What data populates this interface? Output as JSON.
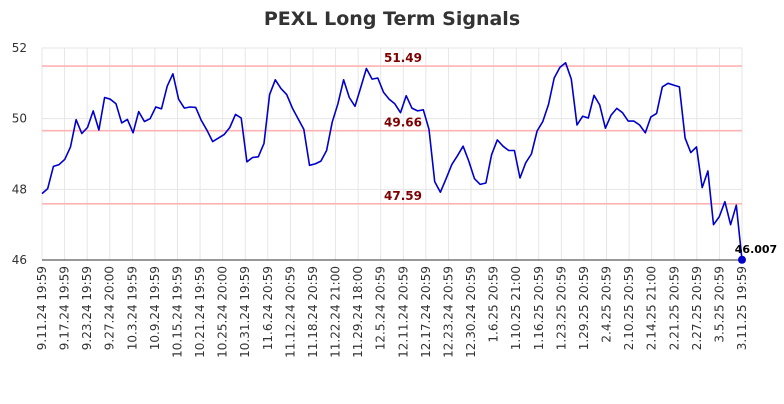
{
  "chart_data": {
    "type": "line",
    "title": "PEXL Long Term Signals",
    "xlabel": "",
    "ylabel": "",
    "ylim": [
      46,
      52
    ],
    "yticks": [
      "46",
      "48",
      "50",
      "52"
    ],
    "x_tick_labels": [
      "9.11.24 19:59",
      "9.17.24 19:59",
      "9.23.24 19:59",
      "9.27.24 20:00",
      "10.3.24 19:59",
      "10.9.24 19:59",
      "10.15.24 19:59",
      "10.21.24 19:59",
      "10.25.24 20:00",
      "10.31.24 19:59",
      "11.6.24 20:59",
      "11.12.24 20:59",
      "11.18.24 20:59",
      "11.22.24 21:00",
      "11.29.24 18:00",
      "12.5.24 20:59",
      "12.11.24 20:59",
      "12.17.24 20:59",
      "12.23.24 20:59",
      "12.30.24 20:59",
      "1.6.25 20:59",
      "1.10.25 21:00",
      "1.16.25 20:59",
      "1.23.25 20:59",
      "1.29.25 20:59",
      "2.4.25 20:59",
      "2.10.25 20:59",
      "2.14.25 21:00",
      "2.21.25 20:59",
      "2.27.25 20:59",
      "3.5.25 20:59",
      "3.11.25 19:59"
    ],
    "grid": true,
    "signal_lines": [
      {
        "label": "51.49",
        "value": 51.49
      },
      {
        "label": "49.66",
        "value": 49.66
      },
      {
        "label": "47.59",
        "value": 47.59
      }
    ],
    "last_point_label": "46.007",
    "series": [
      {
        "color": "#0000cc",
        "values": [
          47.88,
          48.02,
          48.65,
          48.7,
          48.85,
          49.2,
          49.97,
          49.58,
          49.75,
          50.22,
          49.68,
          50.6,
          50.55,
          50.42,
          49.88,
          49.98,
          49.6,
          50.2,
          49.92,
          50.0,
          50.33,
          50.28,
          50.92,
          51.27,
          50.55,
          50.3,
          50.33,
          50.32,
          49.95,
          49.67,
          49.35,
          49.45,
          49.55,
          49.75,
          50.12,
          50.02,
          48.78,
          48.9,
          48.92,
          49.3,
          50.68,
          51.1,
          50.85,
          50.68,
          50.3,
          50.0,
          49.7,
          48.68,
          48.72,
          48.8,
          49.1,
          49.9,
          50.42,
          51.1,
          50.6,
          50.35,
          50.88,
          51.42,
          51.12,
          51.15,
          50.75,
          50.55,
          50.42,
          50.17,
          50.65,
          50.3,
          50.22,
          50.25,
          49.7,
          48.22,
          47.92,
          48.3,
          48.7,
          48.95,
          49.22,
          48.8,
          48.3,
          48.14,
          48.18,
          48.98,
          49.4,
          49.22,
          49.1,
          49.1,
          48.32,
          48.75,
          49.0,
          49.65,
          49.92,
          50.4,
          51.15,
          51.45,
          51.58,
          51.12,
          49.82,
          50.07,
          50.02,
          50.66,
          50.39,
          49.73,
          50.1,
          50.29,
          50.17,
          49.93,
          49.93,
          49.82,
          49.6,
          50.05,
          50.15,
          50.9,
          51.0,
          50.95,
          50.9,
          49.45,
          49.04,
          49.2,
          48.05,
          48.52,
          47.0,
          47.22,
          47.65,
          47.0,
          47.55,
          46.007
        ]
      }
    ]
  }
}
